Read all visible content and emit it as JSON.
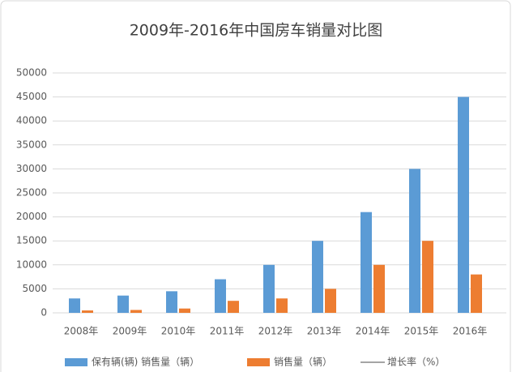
{
  "chart_data": {
    "type": "bar",
    "title": "2009年-2016年中国房车销量对比图",
    "categories": [
      "2008年",
      "2009年",
      "2010年",
      "2011年",
      "2012年",
      "2013年",
      "2014年",
      "2015年",
      "2016年"
    ],
    "series": [
      {
        "name": "保有辆(辆) 销售量（辆）",
        "color": "#5b9bd5",
        "values": [
          3000,
          3600,
          4500,
          7000,
          10000,
          15000,
          21000,
          30000,
          45000
        ]
      },
      {
        "name": "销售量（辆）",
        "color": "#ed7d31",
        "values": [
          500,
          600,
          900,
          2500,
          3000,
          5000,
          10000,
          15000,
          8000
        ]
      },
      {
        "name": "增长率（%）",
        "color": "#a5a5a5",
        "type": "line",
        "values": [
          null,
          null,
          null,
          null,
          null,
          null,
          null,
          null,
          null
        ]
      }
    ],
    "ylim": [
      0,
      50000
    ],
    "yticks": [
      0,
      5000,
      10000,
      15000,
      20000,
      25000,
      30000,
      35000,
      40000,
      45000,
      50000
    ],
    "grid": true,
    "legend": "bottom"
  }
}
